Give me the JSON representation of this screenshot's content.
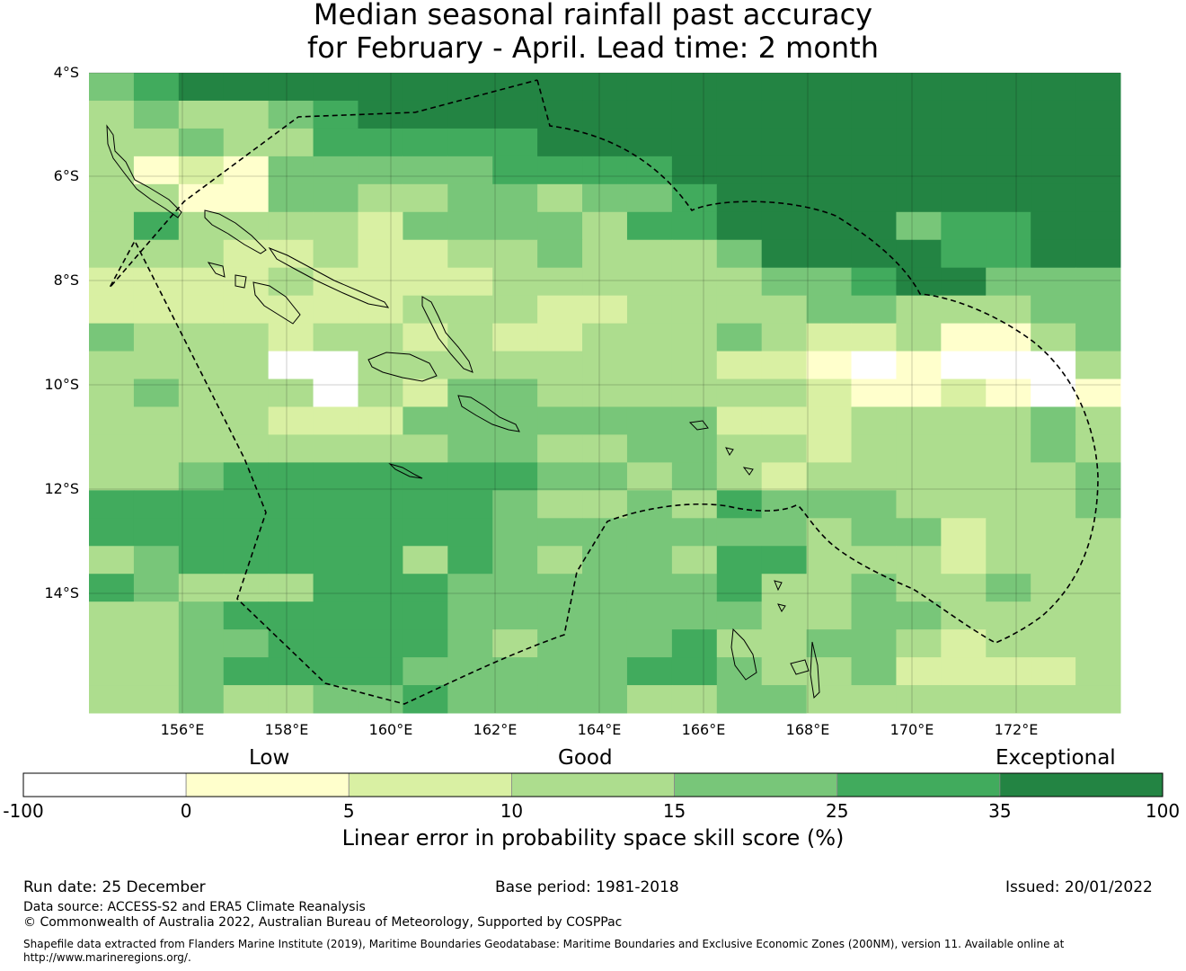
{
  "title": {
    "line1": "Median seasonal rainfall past accuracy",
    "line2": "for February - April. Lead time: 2 month"
  },
  "map": {
    "lat_labels": [
      "4°S",
      "6°S",
      "8°S",
      "10°S",
      "12°S",
      "14°S"
    ],
    "lon_labels": [
      "156°E",
      "158°E",
      "160°E",
      "162°E",
      "164°E",
      "166°E",
      "168°E",
      "170°E",
      "172°E"
    ],
    "extent": {
      "lon": [
        154.2,
        174.0
      ],
      "lat": [
        -4.0,
        -16.3
      ]
    },
    "grid_rows": [
      "45666666666666666666666",
      "34334566666666666666666",
      "33433555556666666666666",
      "31214444455556666666666",
      "33114433443445666666666",
      "35333324444355666645566",
      "33322322334333466665566",
      "22223222233333344566444",
      "22222223332233334433344",
      "43332332322333432231134",
      "33330033333333221010003",
      "34333032443333332112101",
      "33332224444444222333343",
      "33333333443344332333343",
      "33455555554434323333334",
      "55555555543343544433334",
      "55555555544444443442333",
      "34555553543443553332333",
      "54333555444444533433433",
      "33455555444444433443333",
      "33445555434445334432333",
      "33455554444455433422223",
      "33433445444433443333333"
    ],
    "colors": [
      "#ffffff",
      "#ffffcc",
      "#d9f0a3",
      "#addd8e",
      "#78c679",
      "#41ab5d",
      "#238443"
    ]
  },
  "colorbar": {
    "categories": [
      "Low",
      "Good",
      "Exceptional"
    ],
    "ticks": [
      "-100",
      "0",
      "5",
      "10",
      "15",
      "25",
      "35",
      "100"
    ],
    "title": "Linear error in probability space skill score (%)"
  },
  "footer": {
    "run_date": "Run date: 25 December",
    "base_period": "Base period: 1981-2018",
    "issued": "Issued: 20/01/2022",
    "data_source": "Data source: ACCESS-S2 and ERA5 Climate Reanalysis",
    "copyright": "© Commonwealth of Australia 2022, Australian Bureau of Meteorology, Supported by COSPPac",
    "shapefile": "Shapefile data extracted from Flanders Marine Institute (2019), Maritime Boundaries Geodatabase: Maritime Boundaries and Exclusive Economic Zones (200NM), version 11. Available online at http://www.marineregions.org/."
  }
}
